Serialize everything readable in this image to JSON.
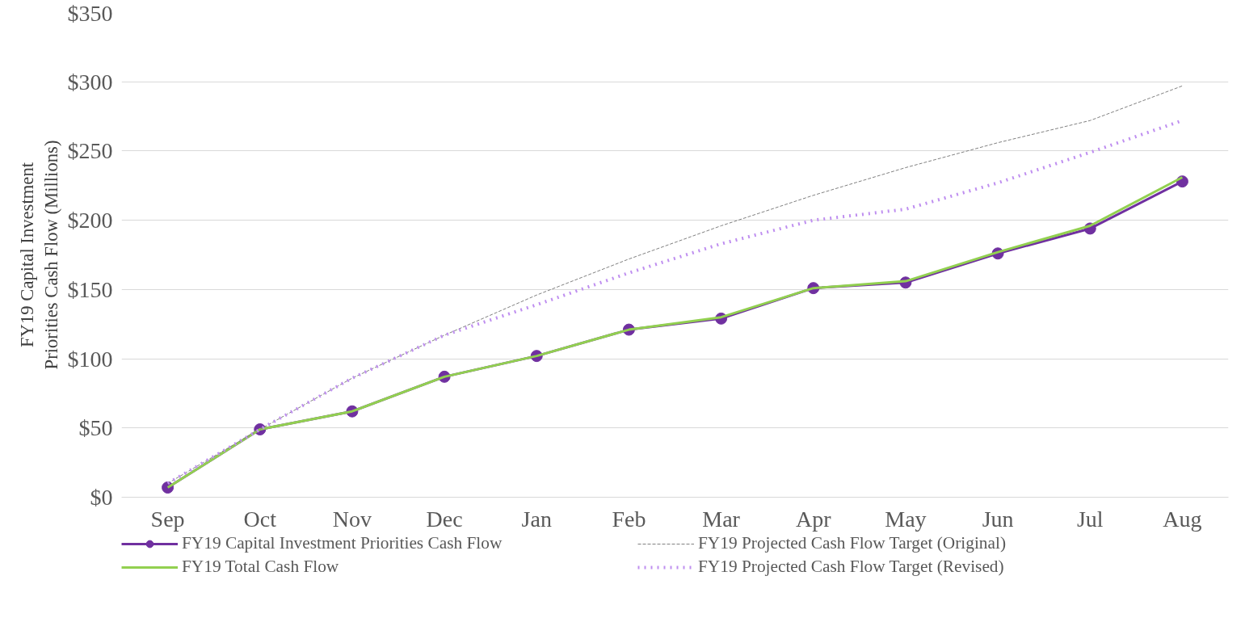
{
  "chart_data": {
    "type": "line",
    "ylabel": "FY19 Capital Investment\nPriorities Cash Flow (Millions)",
    "categories": [
      "Sep",
      "Oct",
      "Nov",
      "Dec",
      "Jan",
      "Feb",
      "Mar",
      "Apr",
      "May",
      "Jun",
      "Jul",
      "Aug"
    ],
    "series": [
      {
        "name": "FY19 Capital Investment Priorities Cash Flow",
        "color": "#7030a0",
        "marker": "circle",
        "line_style": "solid",
        "values": [
          7,
          49,
          62,
          87,
          102,
          121,
          129,
          151,
          155,
          176,
          194,
          228
        ]
      },
      {
        "name": "FY19 Total Cash Flow",
        "color": "#92d050",
        "marker": "none",
        "line_style": "solid",
        "values": [
          7,
          49,
          62,
          87,
          102,
          121,
          130,
          151,
          156,
          177,
          196,
          231
        ]
      },
      {
        "name": "FY19 Projected Cash Flow Target (Original)",
        "color": "#808080",
        "marker": "none",
        "line_style": "dashed",
        "values": [
          10,
          49,
          86,
          117,
          146,
          172,
          196,
          218,
          238,
          256,
          272,
          297
        ]
      },
      {
        "name": "FY19 Projected Cash Flow Target (Revised)",
        "color": "#bf8ff0",
        "marker": "none",
        "line_style": "dotted",
        "values": [
          10,
          49,
          86,
          117,
          139,
          162,
          183,
          200,
          208,
          227,
          249,
          272
        ]
      }
    ],
    "ylim": [
      0,
      350
    ],
    "yticks": [
      {
        "value": 0,
        "label": "$0"
      },
      {
        "value": 50,
        "label": "$50"
      },
      {
        "value": 100,
        "label": "$100"
      },
      {
        "value": 150,
        "label": "$150"
      },
      {
        "value": 200,
        "label": "$200"
      },
      {
        "value": 250,
        "label": "$250"
      },
      {
        "value": 300,
        "label": "$300"
      },
      {
        "value": 350,
        "label": "$350"
      }
    ],
    "grid": "y",
    "legend": "bottom"
  }
}
